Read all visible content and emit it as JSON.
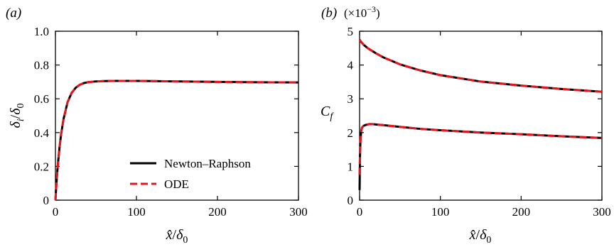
{
  "chart_data": [
    {
      "panel": "(a)",
      "type": "line",
      "xlabel": {
        "base": "x̂",
        "slash": "/",
        "sym": "δ",
        "sub": "0"
      },
      "ylabel": {
        "sym": "δ",
        "sub": "i",
        "slash": "/",
        "sym2": "δ",
        "sub2": "0"
      },
      "xlim": [
        0,
        300
      ],
      "ylim": [
        0,
        1.0
      ],
      "xticks": [
        0,
        100,
        200,
        300
      ],
      "yticks": [
        0,
        0.2,
        0.4,
        0.6,
        0.8,
        1.0
      ],
      "xtick_labels": [
        "0",
        "100",
        "200",
        "300"
      ],
      "ytick_labels": [
        "0",
        "0.2",
        "0.4",
        "0.6",
        "0.8",
        "1.0"
      ],
      "grid": false,
      "legend": {
        "placement": "bottom-right",
        "entries": [
          {
            "label": "Newton–Raphson",
            "color": "#000000",
            "style": "solid"
          },
          {
            "label": "ODE",
            "color": "#e8141c",
            "style": "dashed"
          }
        ]
      },
      "series": [
        {
          "name": "Newton–Raphson",
          "color": "#000000",
          "style": "solid",
          "x": [
            0,
            1,
            2,
            3,
            5,
            7,
            10,
            15,
            20,
            25,
            30,
            35,
            40,
            50,
            60,
            70,
            80,
            100,
            120,
            150,
            200,
            250,
            300
          ],
          "y": [
            0,
            0.08,
            0.15,
            0.21,
            0.31,
            0.39,
            0.48,
            0.58,
            0.635,
            0.665,
            0.683,
            0.693,
            0.698,
            0.703,
            0.705,
            0.706,
            0.706,
            0.706,
            0.705,
            0.703,
            0.7,
            0.698,
            0.697
          ]
        },
        {
          "name": "ODE",
          "color": "#e8141c",
          "style": "dashed",
          "x": [
            0,
            1,
            2,
            3,
            5,
            7,
            10,
            15,
            20,
            25,
            30,
            35,
            40,
            50,
            60,
            70,
            80,
            100,
            120,
            150,
            200,
            250,
            300
          ],
          "y": [
            0,
            0.08,
            0.15,
            0.21,
            0.31,
            0.39,
            0.48,
            0.58,
            0.635,
            0.665,
            0.683,
            0.693,
            0.698,
            0.703,
            0.705,
            0.706,
            0.706,
            0.706,
            0.705,
            0.703,
            0.7,
            0.698,
            0.697
          ]
        }
      ]
    },
    {
      "panel": "(b)",
      "type": "line",
      "xlabel": {
        "base": "x̂",
        "slash": "/",
        "sym": "δ",
        "sub": "0"
      },
      "ylabel": {
        "sym": "C",
        "sub": "f"
      },
      "scale_note": {
        "prefix": "(×10",
        "exp": "−3",
        "suffix": ")"
      },
      "xlim": [
        0,
        300
      ],
      "ylim": [
        0,
        5
      ],
      "xticks": [
        0,
        100,
        200,
        300
      ],
      "yticks": [
        0,
        1,
        2,
        3,
        4,
        5
      ],
      "xtick_labels": [
        "0",
        "100",
        "200",
        "300"
      ],
      "ytick_labels": [
        "0",
        "1",
        "2",
        "3",
        "4",
        "5"
      ],
      "grid": false,
      "series": [
        {
          "name": "Newton–Raphson",
          "color": "#000000",
          "style": "solid",
          "curves": [
            {
              "x": [
                0,
                2,
                5,
                10,
                20,
                30,
                50,
                75,
                100,
                150,
                200,
                250,
                300
              ],
              "y": [
                4.75,
                4.68,
                4.6,
                4.5,
                4.35,
                4.22,
                4.02,
                3.84,
                3.7,
                3.51,
                3.39,
                3.29,
                3.21
              ]
            },
            {
              "x": [
                0,
                0.5,
                1,
                2,
                3,
                5,
                8,
                12,
                16,
                20,
                30,
                50,
                75,
                100,
                150,
                200,
                250,
                300
              ],
              "y": [
                0.3,
                1.3,
                1.75,
                2.05,
                2.15,
                2.2,
                2.23,
                2.25,
                2.25,
                2.24,
                2.22,
                2.17,
                2.11,
                2.07,
                2.0,
                1.95,
                1.89,
                1.84
              ]
            }
          ]
        },
        {
          "name": "ODE",
          "color": "#e8141c",
          "style": "dashed",
          "curves": [
            {
              "x": [
                0,
                2,
                5,
                10,
                20,
                30,
                50,
                75,
                100,
                150,
                200,
                250,
                300
              ],
              "y": [
                4.75,
                4.68,
                4.6,
                4.5,
                4.35,
                4.22,
                4.02,
                3.84,
                3.7,
                3.51,
                3.39,
                3.29,
                3.21
              ]
            },
            {
              "x": [
                0,
                0.5,
                1,
                2,
                3,
                5,
                8,
                12,
                16,
                20,
                30,
                50,
                75,
                100,
                150,
                200,
                250,
                300
              ],
              "y": [
                0.75,
                1.4,
                1.75,
                2.05,
                2.15,
                2.2,
                2.23,
                2.25,
                2.25,
                2.24,
                2.22,
                2.17,
                2.11,
                2.07,
                2.0,
                1.95,
                1.89,
                1.84
              ]
            }
          ]
        }
      ]
    }
  ]
}
